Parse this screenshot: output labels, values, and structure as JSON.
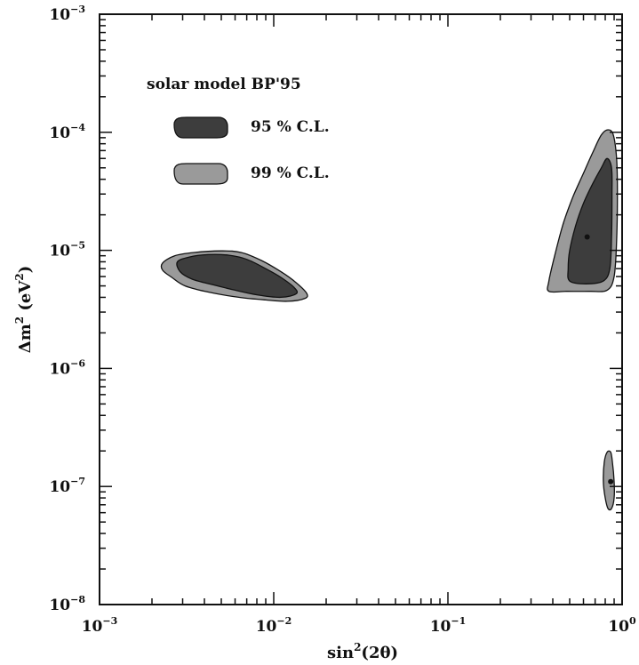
{
  "chart_data": {
    "type": "contour",
    "xlabel_main": "sin",
    "xlabel_sup": "2",
    "xlabel_tail": "(2θ)",
    "ylabel_main": "Δm",
    "ylabel_sup": "2",
    "ylabel_mid": " (eV",
    "ylabel_sup2": "2",
    "ylabel_tail": ")",
    "x_scale": "log",
    "y_scale": "log",
    "xlim": [
      0.001,
      1
    ],
    "ylim": [
      1e-08,
      0.001
    ],
    "x_ticks": [
      {
        "value": 0.001,
        "base": "10",
        "exp": "−3"
      },
      {
        "value": 0.01,
        "base": "10",
        "exp": "−2"
      },
      {
        "value": 0.1,
        "base": "10",
        "exp": "−1"
      },
      {
        "value": 1,
        "base": "10",
        "exp": "0"
      }
    ],
    "y_ticks": [
      {
        "value": 1e-08,
        "base": "10",
        "exp": "−8"
      },
      {
        "value": 1e-07,
        "base": "10",
        "exp": "−7"
      },
      {
        "value": 1e-06,
        "base": "10",
        "exp": "−6"
      },
      {
        "value": 1e-05,
        "base": "10",
        "exp": "−5"
      },
      {
        "value": 0.0001,
        "base": "10",
        "exp": "−4"
      },
      {
        "value": 0.001,
        "base": "10",
        "exp": "−3"
      }
    ],
    "grid": false,
    "legend": {
      "title": "solar model BP'95",
      "placement": "top-left",
      "entries": [
        {
          "label": "95 % C.L.",
          "color": "#3d3d3d"
        },
        {
          "label": "99 % C.L.",
          "color": "#9a9a9a"
        }
      ]
    },
    "series": [
      {
        "label": "99 % C.L.",
        "color": "#9a9a9a",
        "regions": [
          [
            [
              0.0023,
              7.8e-06
            ],
            [
              0.0027,
              9e-06
            ],
            [
              0.0035,
              9.6e-06
            ],
            [
              0.005,
              9.9e-06
            ],
            [
              0.0065,
              9.6e-06
            ],
            [
              0.0085,
              8.2e-06
            ],
            [
              0.011,
              6.6e-06
            ],
            [
              0.0135,
              5.3e-06
            ],
            [
              0.0155,
              4.3e-06
            ],
            [
              0.015,
              3.9e-06
            ],
            [
              0.012,
              3.7e-06
            ],
            [
              0.009,
              3.8e-06
            ],
            [
              0.0063,
              4e-06
            ],
            [
              0.0043,
              4.4e-06
            ],
            [
              0.0031,
              5e-06
            ],
            [
              0.0026,
              5.9e-06
            ],
            [
              0.0023,
              6.8e-06
            ]
          ],
          [
            [
              0.38,
              4.5e-06
            ],
            [
              0.48,
              4.5e-06
            ],
            [
              0.65,
              4.5e-06
            ],
            [
              0.82,
              4.6e-06
            ],
            [
              0.9,
              6e-06
            ],
            [
              0.93,
              1.2e-05
            ],
            [
              0.94,
              3e-05
            ],
            [
              0.93,
              6e-05
            ],
            [
              0.89,
              9.5e-05
            ],
            [
              0.83,
              0.000105
            ],
            [
              0.76,
              9.5e-05
            ],
            [
              0.68,
              6.8e-05
            ],
            [
              0.6,
              4.5e-05
            ],
            [
              0.52,
              2.8e-05
            ],
            [
              0.46,
              1.7e-05
            ],
            [
              0.41,
              9e-06
            ],
            [
              0.38,
              5.5e-06
            ]
          ],
          [
            [
              0.79,
              1.6e-07
            ],
            [
              0.82,
              1.95e-07
            ],
            [
              0.86,
              1.95e-07
            ],
            [
              0.88,
              1.6e-07
            ],
            [
              0.9,
              1.1e-07
            ],
            [
              0.9,
              8e-08
            ],
            [
              0.87,
              6.5e-08
            ],
            [
              0.83,
              6.5e-08
            ],
            [
              0.8,
              8e-08
            ],
            [
              0.78,
              1.1e-07
            ]
          ]
        ]
      },
      {
        "label": "95 % C.L.",
        "color": "#3d3d3d",
        "regions": [
          [
            [
              0.0028,
              8e-06
            ],
            [
              0.0033,
              8.8e-06
            ],
            [
              0.0042,
              9.2e-06
            ],
            [
              0.0055,
              9.1e-06
            ],
            [
              0.007,
              8.4e-06
            ],
            [
              0.009,
              7e-06
            ],
            [
              0.011,
              5.9e-06
            ],
            [
              0.013,
              4.9e-06
            ],
            [
              0.0135,
              4.3e-06
            ],
            [
              0.011,
              4e-06
            ],
            [
              0.008,
              4.2e-06
            ],
            [
              0.006,
              4.6e-06
            ],
            [
              0.0045,
              5.1e-06
            ],
            [
              0.0034,
              5.7e-06
            ],
            [
              0.0029,
              6.6e-06
            ]
          ],
          [
            [
              0.5,
              5.5e-06
            ],
            [
              0.62,
              5.2e-06
            ],
            [
              0.78,
              5.5e-06
            ],
            [
              0.85,
              7e-06
            ],
            [
              0.87,
              1.3e-05
            ],
            [
              0.875,
              3e-05
            ],
            [
              0.87,
              5e-05
            ],
            [
              0.82,
              6e-05
            ],
            [
              0.76,
              5e-05
            ],
            [
              0.68,
              3.7e-05
            ],
            [
              0.6,
              2.5e-05
            ],
            [
              0.54,
              1.6e-05
            ],
            [
              0.5,
              1e-05
            ],
            [
              0.49,
              7e-06
            ]
          ]
        ]
      }
    ],
    "markers": [
      {
        "x": 0.63,
        "y": 1.3e-05
      },
      {
        "x": 0.86,
        "y": 1.1e-07
      }
    ]
  }
}
